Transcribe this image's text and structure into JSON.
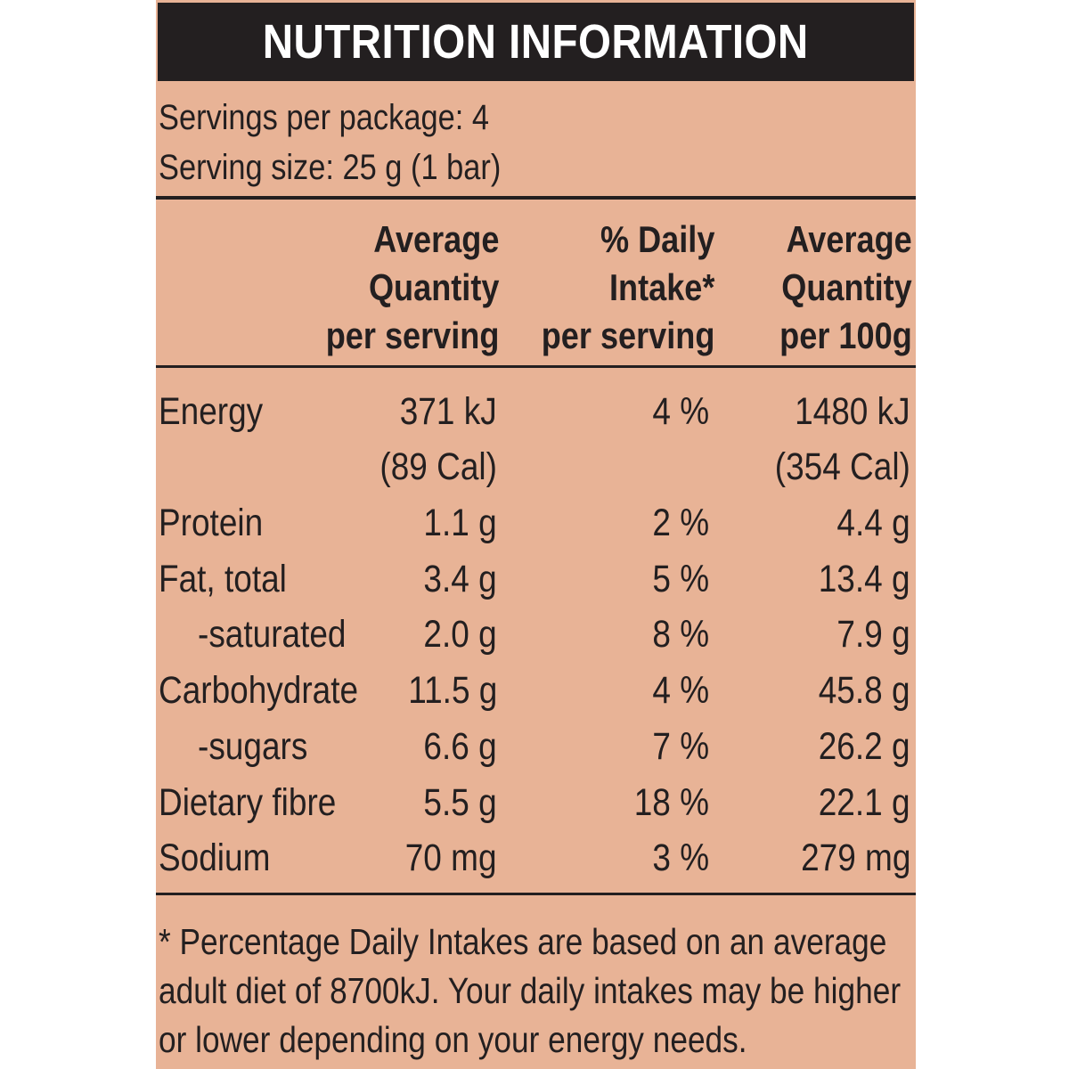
{
  "title": "NUTRITION INFORMATION",
  "servings_per_package": "Servings per package: 4",
  "serving_size": "Serving size: 25 g (1 bar)",
  "columns": [
    {
      "lines": [
        "Average",
        "Quantity",
        "per serving"
      ]
    },
    {
      "lines": [
        "% Daily",
        "Intake*",
        "per serving"
      ]
    },
    {
      "lines": [
        "Average",
        "Quantity",
        "per 100g"
      ]
    }
  ],
  "rows": [
    {
      "label": "Energy",
      "per_serving": "371 kJ",
      "daily_intake": "4 %",
      "per_100g": "1480 kJ"
    },
    {
      "label": "",
      "per_serving": "(89 Cal)",
      "daily_intake": "",
      "per_100g": "(354 Cal)"
    },
    {
      "label": "Protein",
      "per_serving": "1.1 g",
      "daily_intake": "2 %",
      "per_100g": "4.4 g"
    },
    {
      "label": "Fat, total",
      "per_serving": "3.4 g",
      "daily_intake": "5 %",
      "per_100g": "13.4 g"
    },
    {
      "label": "-saturated",
      "per_serving": "2.0 g",
      "daily_intake": "8 %",
      "per_100g": "7.9 g"
    },
    {
      "label": "Carbohydrate",
      "per_serving": "11.5 g",
      "daily_intake": "4 %",
      "per_100g": "45.8 g"
    },
    {
      "label": "-sugars",
      "per_serving": "6.6 g",
      "daily_intake": "7 %",
      "per_100g": "26.2 g"
    },
    {
      "label": "Dietary fibre",
      "per_serving": "5.5 g",
      "daily_intake": "18 %",
      "per_100g": "22.1 g"
    },
    {
      "label": "Sodium",
      "per_serving": "70 mg",
      "daily_intake": "3 %",
      "per_100g": "279 mg"
    }
  ],
  "footnote": [
    "* Percentage Daily Intakes are based on an average",
    "adult diet of 8700kJ. Your daily intakes may be higher",
    "or lower depending on your energy needs."
  ]
}
